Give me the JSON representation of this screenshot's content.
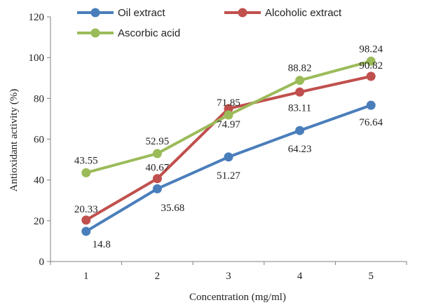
{
  "chart_data": {
    "type": "line",
    "x": [
      1,
      2,
      3,
      4,
      5
    ],
    "xlabel": "Concentration (mg/ml)",
    "ylabel": "Antioxidant activity (%)",
    "ylim": [
      0,
      120
    ],
    "yticks": [
      0,
      20,
      40,
      60,
      80,
      100,
      120
    ],
    "grid": false,
    "legend_position": "top",
    "series": [
      {
        "name": "Oil extract",
        "color": "#4a7ebb",
        "values": [
          14.8,
          35.68,
          51.27,
          64.23,
          76.64
        ]
      },
      {
        "name": "Alcoholic extract",
        "color": "#c0504d",
        "values": [
          20.33,
          40.67,
          74.97,
          83.11,
          90.82
        ]
      },
      {
        "name": "Ascorbic acid",
        "color": "#9bbb59",
        "values": [
          43.55,
          52.95,
          71.85,
          88.82,
          98.24
        ]
      }
    ]
  }
}
